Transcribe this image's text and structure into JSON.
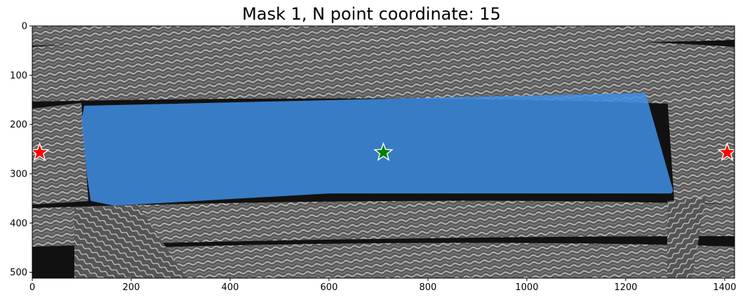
{
  "figure": {
    "title": "Mask 1, N point coordinate: 15"
  },
  "axes": {
    "x_ticks": [
      0,
      200,
      400,
      600,
      800,
      1000,
      1200,
      1400
    ],
    "y_ticks": [
      0,
      100,
      200,
      300,
      400,
      500
    ],
    "x_range": [
      0,
      1420
    ],
    "y_range": [
      512,
      0
    ]
  },
  "image": {
    "description_colors": {
      "background": "#111111",
      "fiber": "#9a9a9a",
      "mask": "#3f8fe6"
    },
    "mask_polygon_data": [
      [
        105,
        162
      ],
      [
        1240,
        136
      ],
      [
        1296,
        335
      ],
      [
        1292,
        340
      ],
      [
        600,
        340
      ],
      [
        165,
        365
      ],
      [
        118,
        355
      ],
      [
        110,
        300
      ],
      [
        100,
        190
      ]
    ],
    "points": [
      {
        "label": "positive",
        "x": 710,
        "y": 257,
        "color": "#008000"
      },
      {
        "label": "negative",
        "x": 15,
        "y": 257,
        "color": "#ff0000"
      },
      {
        "label": "negative",
        "x": 1405,
        "y": 257,
        "color": "#ff0000"
      }
    ]
  }
}
